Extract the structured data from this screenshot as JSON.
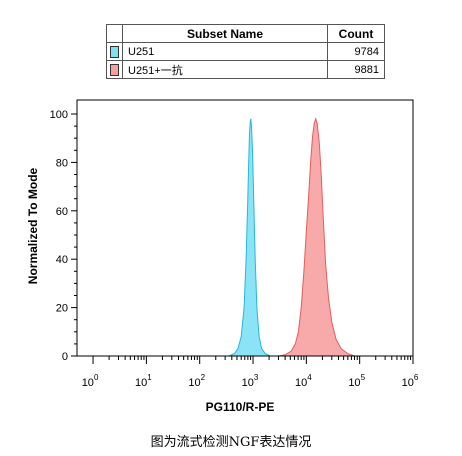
{
  "legend_table": {
    "header_name": "Subset Name",
    "header_count": "Count",
    "rows": [
      {
        "name": "U251",
        "count": "9784",
        "color": "#7ee0f5"
      },
      {
        "name": "U251+一抗",
        "count": "9881",
        "color": "#f7a0a0"
      }
    ]
  },
  "chart_data": {
    "type": "area",
    "xlabel": "PG110/R-PE",
    "ylabel": "Normalized To Mode",
    "x_scale": "log",
    "xlim": [
      0.5,
      1000000
    ],
    "ylim": [
      0,
      100
    ],
    "x_ticks": [
      {
        "base": "10",
        "exp": "0",
        "value": 1
      },
      {
        "base": "10",
        "exp": "1",
        "value": 10
      },
      {
        "base": "10",
        "exp": "2",
        "value": 100
      },
      {
        "base": "10",
        "exp": "3",
        "value": 1000
      },
      {
        "base": "10",
        "exp": "4",
        "value": 10000
      },
      {
        "base": "10",
        "exp": "5",
        "value": 100000
      },
      {
        "base": "10",
        "exp": "6",
        "value": 1000000
      }
    ],
    "y_ticks": [
      {
        "label": "0",
        "value": 0
      },
      {
        "label": "20",
        "value": 20
      },
      {
        "label": "40",
        "value": 40
      },
      {
        "label": "60",
        "value": 60
      },
      {
        "label": "80",
        "value": 80
      },
      {
        "label": "100",
        "value": 100
      }
    ],
    "series": [
      {
        "name": "U251",
        "fill": "#7ee0f5",
        "stroke": "#29b6d8",
        "points": [
          [
            350,
            0
          ],
          [
            450,
            1
          ],
          [
            520,
            3
          ],
          [
            600,
            8
          ],
          [
            680,
            20
          ],
          [
            740,
            40
          ],
          [
            790,
            62
          ],
          [
            830,
            80
          ],
          [
            860,
            92
          ],
          [
            890,
            97
          ],
          [
            910,
            98
          ],
          [
            940,
            94
          ],
          [
            980,
            84
          ],
          [
            1030,
            65
          ],
          [
            1100,
            40
          ],
          [
            1180,
            20
          ],
          [
            1300,
            8
          ],
          [
            1450,
            3
          ],
          [
            1700,
            1
          ],
          [
            2100,
            0
          ]
        ]
      },
      {
        "name": "U251+一抗",
        "fill": "#f7a0a0",
        "stroke": "#e35d5d",
        "points": [
          [
            3000,
            0
          ],
          [
            4000,
            0.5
          ],
          [
            5200,
            2
          ],
          [
            6200,
            5
          ],
          [
            7100,
            10
          ],
          [
            8000,
            20
          ],
          [
            9000,
            35
          ],
          [
            10000,
            52
          ],
          [
            11000,
            66
          ],
          [
            12000,
            80
          ],
          [
            13000,
            90
          ],
          [
            14000,
            96
          ],
          [
            15000,
            98
          ],
          [
            16000,
            96
          ],
          [
            17500,
            88
          ],
          [
            19000,
            75
          ],
          [
            21000,
            55
          ],
          [
            23000,
            38
          ],
          [
            26000,
            24
          ],
          [
            30000,
            14
          ],
          [
            36000,
            7
          ],
          [
            45000,
            3
          ],
          [
            60000,
            1
          ],
          [
            80000,
            0
          ]
        ]
      }
    ]
  },
  "caption": "图为流式检测NGF表达情况"
}
